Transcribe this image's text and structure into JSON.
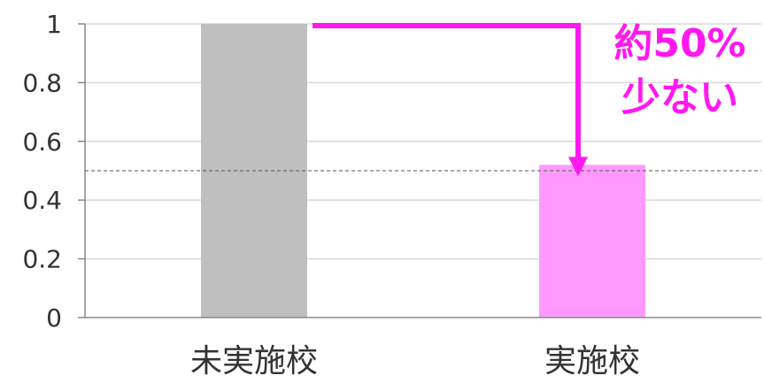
{
  "chart_data": {
    "type": "bar",
    "categories": [
      "未実施校",
      "実施校"
    ],
    "values": [
      1.0,
      0.52
    ],
    "ylim": [
      0,
      1
    ],
    "yticks": [
      0,
      0.2,
      0.4,
      0.6,
      0.8,
      1
    ],
    "ytick_labels": [
      "0",
      "0.2",
      "0.4",
      "0.6",
      "0.8",
      "1"
    ],
    "grid": true,
    "reference_line": 0.5,
    "bar_colors": [
      "#bfbfbf",
      "#ff99ff"
    ],
    "annotation": {
      "lines": [
        "約50%",
        "少ない"
      ],
      "color": "#ff19f0"
    }
  }
}
